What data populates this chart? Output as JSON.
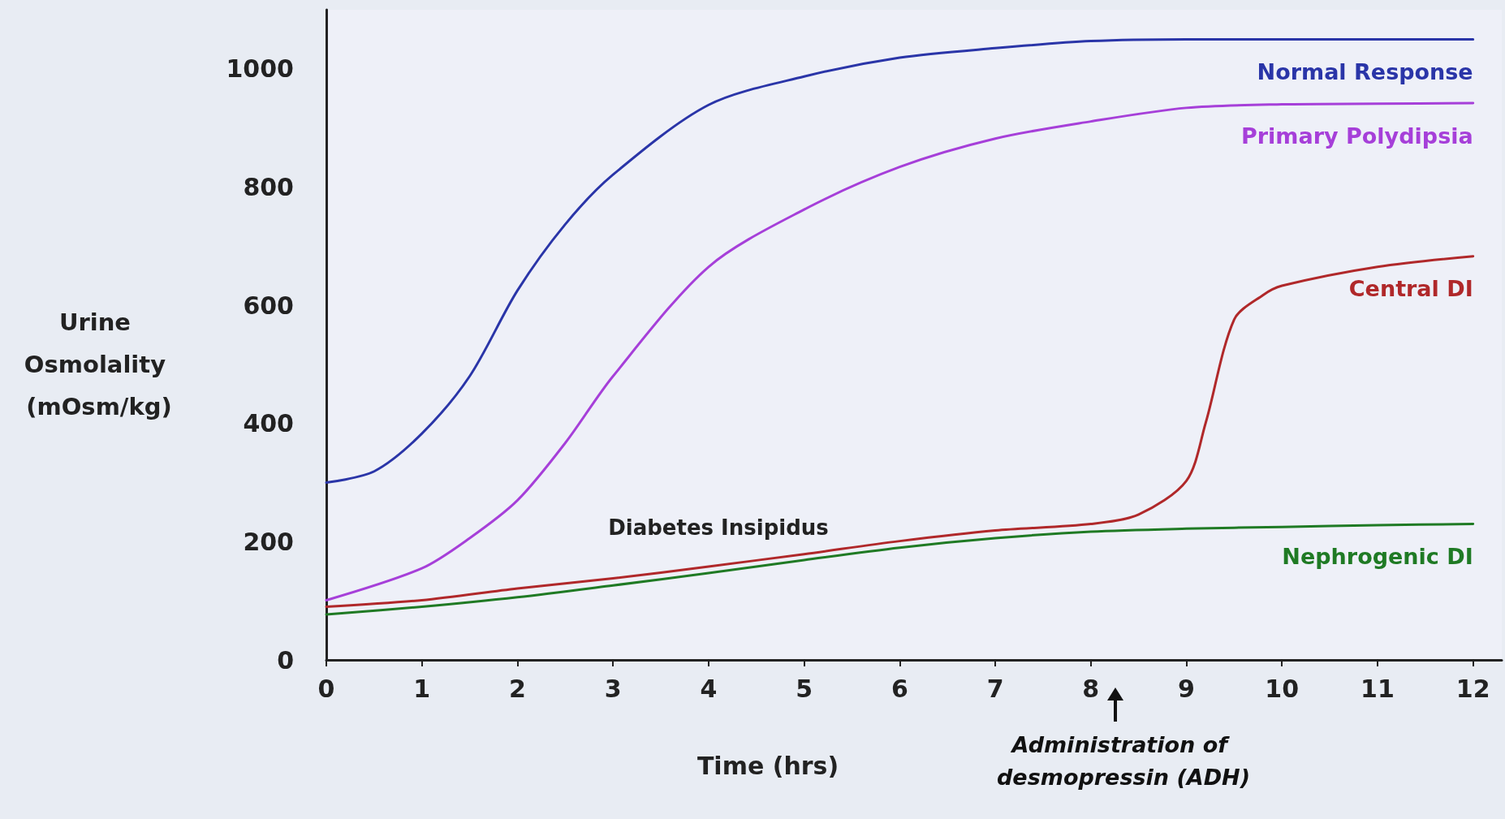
{
  "chart_data": {
    "type": "line",
    "xlabel": "Time (hrs)",
    "ylabel": "Urine Osmolality (mOsm/kg)",
    "xlim": [
      0,
      12.3
    ],
    "xticks": [
      0,
      1,
      2,
      3,
      4,
      5,
      6,
      7,
      8,
      9,
      10,
      11,
      12
    ],
    "ylim": [
      0,
      1100
    ],
    "yticks": [
      0,
      200,
      400,
      600,
      800,
      1000
    ],
    "grid": false,
    "legend": false,
    "marker": "none",
    "line_style": "solid",
    "series": [
      {
        "name": "Normal Response",
        "color": "#2a35a8",
        "x": [
          0,
          0.5,
          1,
          1.5,
          2,
          2.5,
          3,
          4,
          5,
          6,
          7,
          8,
          9,
          10,
          11,
          12
        ],
        "values": [
          300,
          319,
          383,
          480,
          625,
          737,
          821,
          939,
          987,
          1019,
          1035,
          1047,
          1050,
          1050,
          1050,
          1050
        ]
      },
      {
        "name": "Primary Polydipsia",
        "color": "#a63fd9",
        "x": [
          0,
          1,
          1.5,
          2,
          2.5,
          3,
          4,
          5,
          6,
          7,
          8,
          9,
          10,
          11,
          12
        ],
        "values": [
          101,
          155,
          206,
          270,
          367,
          480,
          665,
          762,
          834,
          882,
          911,
          934,
          940,
          941,
          942
        ]
      },
      {
        "name": "Central DI",
        "color": "#b0282a",
        "x": [
          0,
          1,
          2,
          3,
          4,
          5,
          6,
          7,
          8,
          8.5,
          9,
          9.2,
          9.5,
          9.8,
          10,
          11,
          12
        ],
        "values": [
          90,
          101,
          121,
          138,
          158,
          179,
          201,
          219,
          230,
          246,
          303,
          400,
          576,
          617,
          633,
          665,
          683
        ]
      },
      {
        "name": "Nephrogenic DI",
        "color": "#1f7a24",
        "x": [
          0,
          1,
          2,
          3,
          4,
          5,
          6,
          7,
          8,
          9,
          10,
          11,
          12
        ],
        "values": [
          77,
          90,
          106,
          126,
          147,
          169,
          190,
          206,
          217,
          222,
          225,
          228,
          230
        ]
      }
    ],
    "annotations": [
      "Diabetes Insipidus",
      "Administration of desmopressin (ADH)"
    ]
  }
}
